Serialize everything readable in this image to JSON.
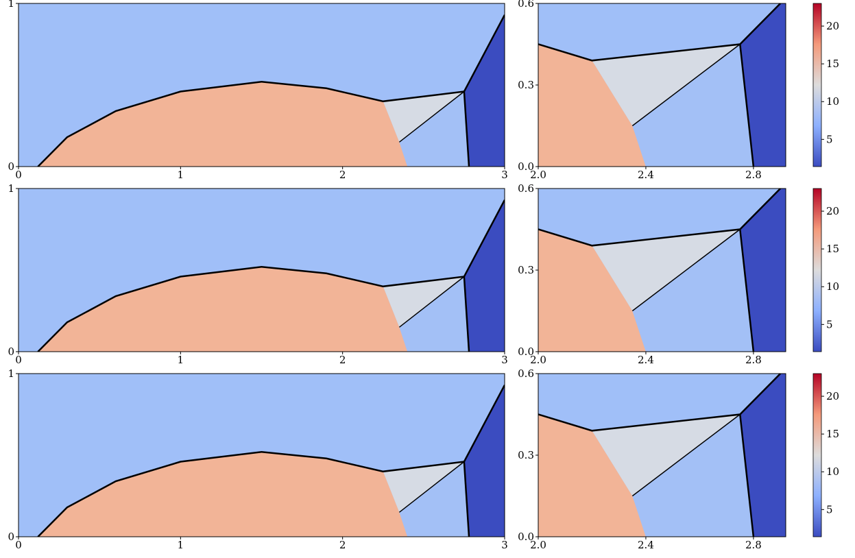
{
  "chart_data": [
    {
      "type": "contour",
      "xlim": [
        0,
        3
      ],
      "ylim": [
        0,
        1
      ],
      "xticks": [
        0,
        1,
        2,
        3
      ],
      "yticks": [
        0,
        1
      ]
    },
    {
      "type": "contour",
      "xlim": [
        2,
        2.92
      ],
      "ylim": [
        0,
        0.6
      ],
      "xticks": [
        {
          "value": 2,
          "label": "2.0"
        },
        2.4,
        2.8
      ],
      "yticks": [
        {
          "value": 0,
          "label": "0.0"
        },
        0.3,
        0.6
      ],
      "colorbar": {
        "lim": [
          1.4,
          23
        ],
        "ticks": [
          5,
          10,
          15,
          20
        ]
      }
    },
    {
      "type": "contour",
      "xlim": [
        0,
        3
      ],
      "ylim": [
        0,
        1
      ],
      "xticks": [
        0,
        1,
        2,
        3
      ],
      "yticks": [
        0,
        1
      ]
    },
    {
      "type": "contour",
      "xlim": [
        2,
        2.92
      ],
      "ylim": [
        0,
        0.6
      ],
      "xticks": [
        {
          "value": 2,
          "label": "2.0"
        },
        2.4,
        2.8
      ],
      "yticks": [
        {
          "value": 0,
          "label": "0.0"
        },
        0.3,
        0.6
      ],
      "colorbar": {
        "lim": [
          1.4,
          23
        ],
        "ticks": [
          5,
          10,
          15,
          20
        ]
      }
    },
    {
      "type": "contour",
      "xlim": [
        0,
        3
      ],
      "ylim": [
        0,
        1
      ],
      "xticks": [
        0,
        1,
        2,
        3
      ],
      "yticks": [
        0,
        1
      ]
    },
    {
      "type": "contour",
      "xlim": [
        2,
        2.92
      ],
      "ylim": [
        0,
        0.6
      ],
      "xticks": [
        {
          "value": 2,
          "label": "2.0"
        },
        2.4,
        2.8
      ],
      "yticks": [
        {
          "value": 0,
          "label": "0.0"
        },
        0.3,
        0.6
      ],
      "colorbar": {
        "lim": [
          1.4,
          23
        ],
        "ticks": [
          5,
          10,
          15,
          20
        ]
      }
    }
  ]
}
